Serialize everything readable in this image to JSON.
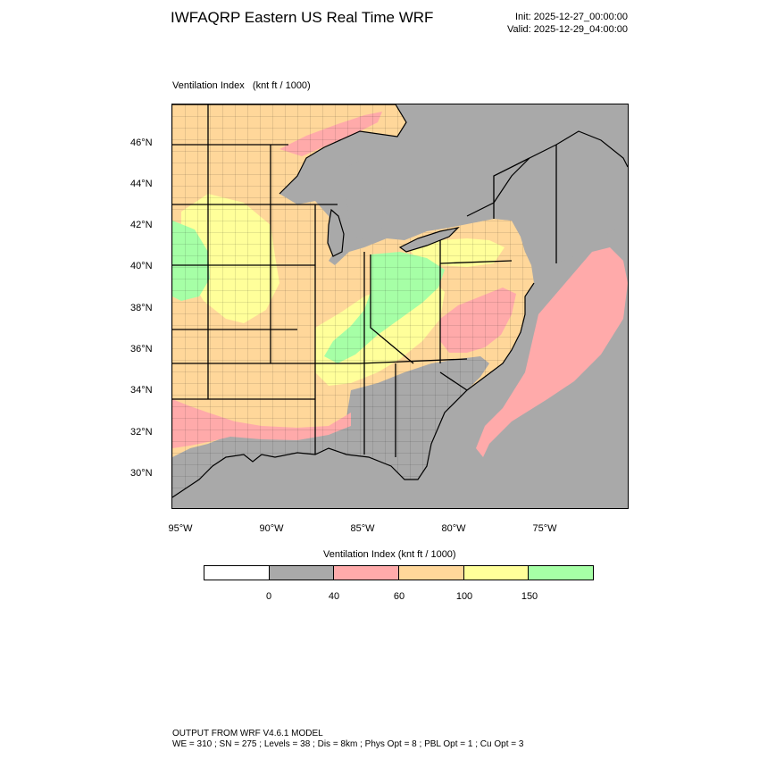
{
  "header": {
    "title": "IWFAQRP Eastern US Real Time WRF",
    "init": "Init: 2025-12-27_00:00:00",
    "valid": "Valid: 2025-12-29_04:00:00"
  },
  "field": {
    "name": "Ventilation Index",
    "units": "(knt ft / 1000)"
  },
  "axes": {
    "lat_labels": [
      "46°N",
      "44°N",
      "42°N",
      "40°N",
      "38°N",
      "36°N",
      "34°N",
      "32°N",
      "30°N"
    ],
    "lon_labels": [
      "95°W",
      "90°W",
      "85°W",
      "80°W",
      "75°W"
    ]
  },
  "colorbar": {
    "title": "Ventilation Index  (knt ft / 1000)",
    "tick_labels": [
      "0",
      "40",
      "60",
      "100",
      "150"
    ],
    "colors": [
      "#ffffff",
      "#a9a9a9",
      "#ffaaaa",
      "#ffd79a",
      "#ffff9a",
      "#a6ffa6"
    ]
  },
  "colors": {
    "land_base": "#ffd79a",
    "ocean_gray": "#a9a9a9",
    "water_pink": "#ffaaaa",
    "yellow": "#ffff9a",
    "green": "#a6ffa6"
  },
  "footer": {
    "line1": "OUTPUT FROM WRF V4.6.1 MODEL",
    "line2": "WE = 310 ; SN = 275 ; Levels = 38 ; Dis = 8km ; Phys Opt = 8 ; PBL Opt = 1 ; Cu Opt = 3"
  }
}
